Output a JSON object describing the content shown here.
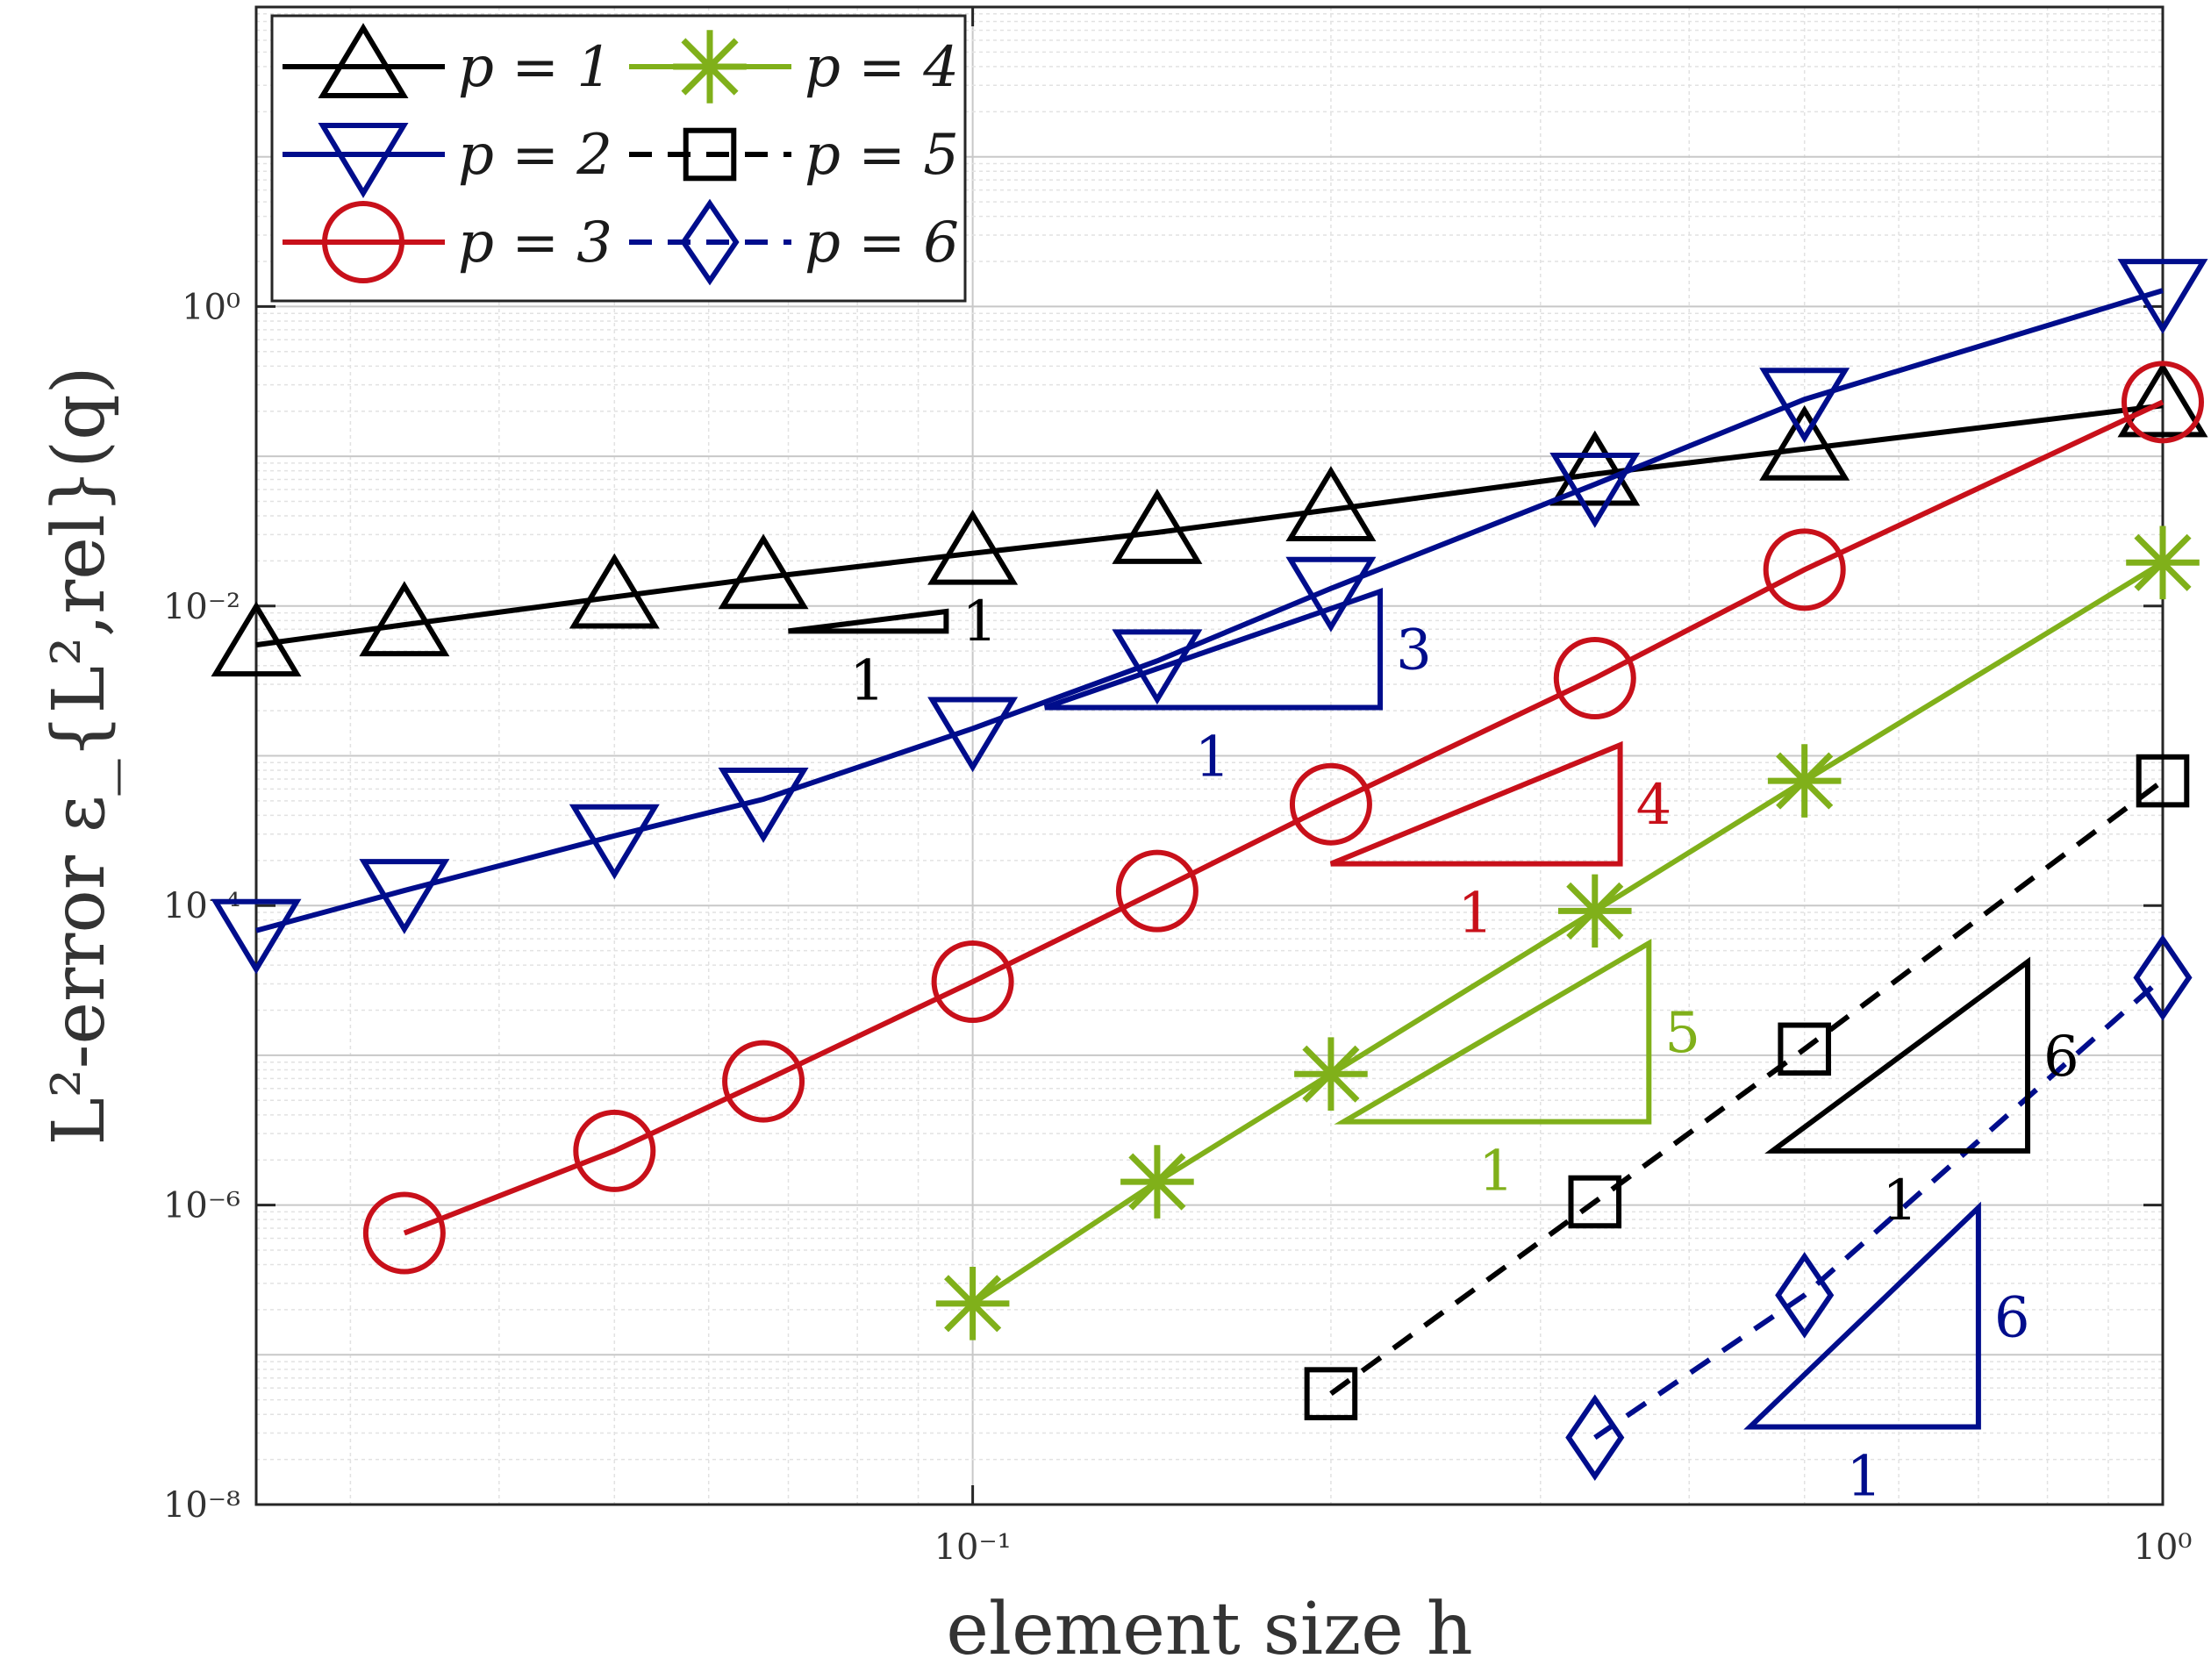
{
  "chart_data": {
    "type": "line",
    "title": "",
    "xlabel": "element size h",
    "ylabel": "L²-error ε_{L²,rel}(q)",
    "xscale": "log",
    "yscale": "log",
    "xlim": [
      0.025,
      1.0
    ],
    "ylim": [
      1e-08,
      100
    ],
    "x_ticks": [
      0.1,
      1
    ],
    "x_tick_labels": [
      "10⁻¹",
      "10⁰"
    ],
    "y_ticks": [
      1e-08,
      1e-06,
      0.0001,
      0.01,
      1
    ],
    "y_tick_labels": [
      "10⁻⁸",
      "10⁻⁶",
      "10⁻⁴",
      "10⁻²",
      "10⁰"
    ],
    "grid": true,
    "legend": {
      "placement": "top-left",
      "columns": 2
    },
    "series": [
      {
        "name": "p = 1",
        "color": "#000000",
        "marker": "triangle-up",
        "linestyle": "solid",
        "x": [
          0.025,
          0.0333,
          0.05,
          0.0667,
          0.1,
          0.1429,
          0.2,
          0.3333,
          0.5,
          1.0
        ],
        "y": [
          0.0055,
          0.0075,
          0.0115,
          0.0155,
          0.0225,
          0.031,
          0.044,
          0.076,
          0.112,
          0.218
        ]
      },
      {
        "name": "p = 2",
        "color": "#000d8c",
        "marker": "triangle-down",
        "linestyle": "solid",
        "x": [
          0.025,
          0.0333,
          0.05,
          0.0667,
          0.1,
          0.1429,
          0.2,
          0.3333,
          0.5,
          1.0
        ],
        "y": [
          6.8e-05,
          0.000126,
          0.000292,
          0.000513,
          0.00152,
          0.0043,
          0.0131,
          0.065,
          0.24,
          1.28
        ]
      },
      {
        "name": "p = 3",
        "color": "#c8101a",
        "marker": "circle",
        "linestyle": "solid",
        "x": [
          0.0333,
          0.05,
          0.0667,
          0.1,
          0.1429,
          0.2,
          0.3333,
          0.5,
          1.0
        ],
        "y": [
          6.5e-07,
          2.3e-06,
          6.7e-06,
          3.1e-05,
          0.000125,
          0.000475,
          0.0033,
          0.0175,
          0.23
        ]
      },
      {
        "name": "p = 4",
        "color": "#80b01a",
        "marker": "asterisk",
        "linestyle": "solid",
        "x": [
          0.1,
          0.1429,
          0.2,
          0.3333,
          0.5,
          1.0
        ],
        "y": [
          2.2e-07,
          1.43e-06,
          7.5e-06,
          9.2e-05,
          0.00068,
          0.0195
        ]
      },
      {
        "name": "p = 5",
        "color": "#000000",
        "marker": "square",
        "linestyle": "dashed",
        "x": [
          0.2,
          0.3333,
          0.5,
          1.0
        ],
        "y": [
          5.5e-08,
          1.05e-06,
          1.1e-05,
          0.00068
        ]
      },
      {
        "name": "p = 6",
        "color": "#000d8c",
        "marker": "diamond",
        "linestyle": "dashed",
        "x": [
          0.3333,
          0.5,
          1.0
        ],
        "y": [
          2.8e-08,
          2.5e-07,
          3.3e-05
        ]
      }
    ],
    "slope_triangles": [
      {
        "color": "#000000",
        "x": [
          0.07,
          0.095
        ],
        "y": [
          0.0068,
          0.0092
        ],
        "rise_label": "1",
        "run_label": "1"
      },
      {
        "color": "#000d8c",
        "x": [
          0.115,
          0.22
        ],
        "y": [
          0.0021,
          0.0125
        ],
        "rise_label": "3",
        "run_label": "1"
      },
      {
        "color": "#c8101a",
        "x": [
          0.2,
          0.35
        ],
        "y": [
          0.00019,
          0.00118
        ],
        "rise_label": "4",
        "run_label": "1"
      },
      {
        "color": "#80b01a",
        "x": [
          0.205,
          0.37
        ],
        "y": [
          3.6e-06,
          5.6e-05
        ],
        "rise_label": "5",
        "run_label": "1"
      },
      {
        "color": "#000000",
        "x": [
          0.47,
          0.77
        ],
        "y": [
          2.3e-06,
          4.2e-05
        ],
        "rise_label": "6",
        "run_label": "1"
      },
      {
        "color": "#000d8c",
        "x": [
          0.45,
          0.7
        ],
        "y": [
          3.3e-08,
          9.6e-07
        ],
        "rise_label": "6",
        "run_label": "1"
      }
    ]
  }
}
